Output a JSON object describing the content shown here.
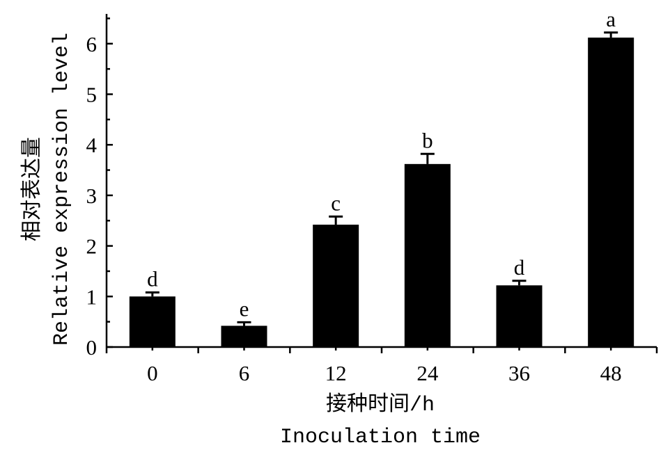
{
  "chart_data": {
    "type": "bar",
    "title": "",
    "categories": [
      "0",
      "6",
      "12",
      "24",
      "36",
      "48"
    ],
    "values": [
      1.0,
      0.42,
      2.42,
      3.62,
      1.22,
      6.12
    ],
    "errors": [
      0.08,
      0.07,
      0.16,
      0.2,
      0.09,
      0.1
    ],
    "significance": [
      "d",
      "e",
      "c",
      "b",
      "d",
      "a"
    ],
    "xlabel_zh": "接种时间/h",
    "xlabel_en": "Inoculation time",
    "ylabel_zh": "相对表达量",
    "ylabel_en": "Relative expression level",
    "ylim": [
      0,
      6.5
    ],
    "yticks": [
      "0",
      "1",
      "2",
      "3",
      "4",
      "5",
      "6"
    ],
    "grid": false,
    "bar_color": "#000000"
  }
}
